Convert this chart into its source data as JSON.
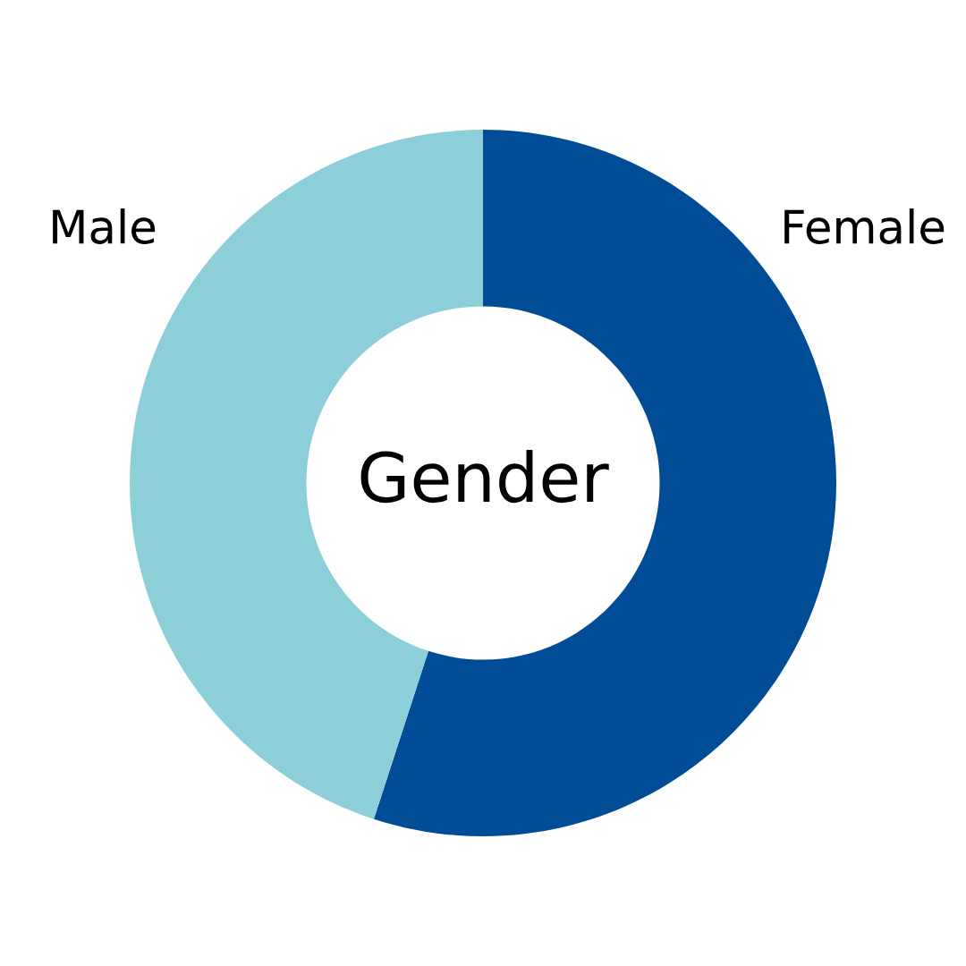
{
  "chart_data": {
    "type": "donut",
    "title": "Gender",
    "categories": [
      "Female",
      "Male"
    ],
    "values": [
      55,
      45
    ],
    "colors": [
      "#004c97",
      "#8ccfd8"
    ]
  }
}
